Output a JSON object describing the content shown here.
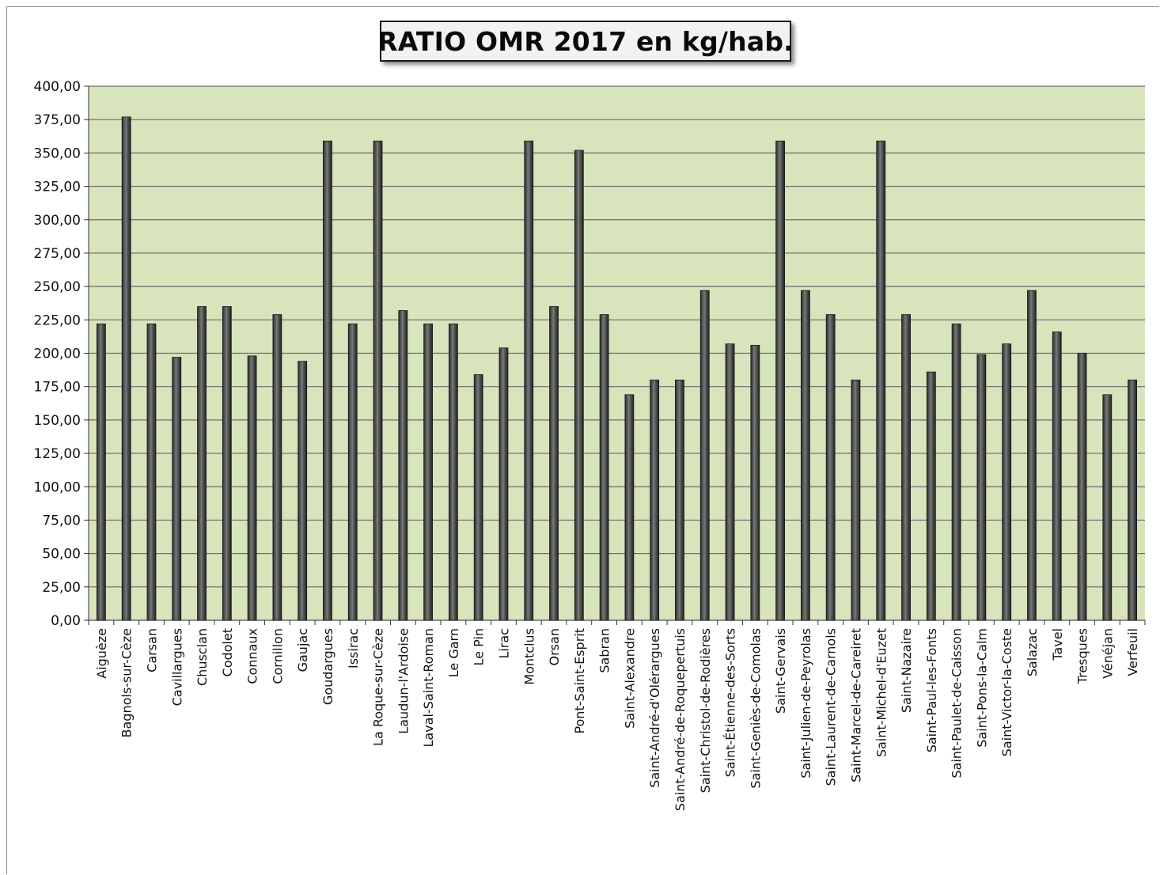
{
  "chart_data": {
    "type": "bar",
    "title": "RATIO OMR 2017 en kg/hab.",
    "xlabel": "",
    "ylabel": "",
    "ylim": [
      0,
      400
    ],
    "y_ticks": [
      "0,00",
      "25,00",
      "50,00",
      "75,00",
      "100,00",
      "125,00",
      "150,00",
      "175,00",
      "200,00",
      "225,00",
      "250,00",
      "275,00",
      "300,00",
      "325,00",
      "350,00",
      "375,00",
      "400,00"
    ],
    "y_tick_values": [
      0,
      25,
      50,
      75,
      100,
      125,
      150,
      175,
      200,
      225,
      250,
      275,
      300,
      325,
      350,
      375,
      400
    ],
    "grid": true,
    "legend": "none",
    "categories": [
      "Aiguèze",
      "Bagnols-sur-Cèze",
      "Carsan",
      "Cavillargues",
      "Chusclan",
      "Codolet",
      "Connaux",
      "Cornillon",
      "Gaujac",
      "Goudargues",
      "Issirac",
      "La Roque-sur-Cèze",
      "Laudun-l'Ardoise",
      "Laval-Saint-Roman",
      "Le Garn",
      "Le Pin",
      "Lirac",
      "Montclus",
      "Orsan",
      "Pont-Saint-Esprit",
      "Sabran",
      "Saint-Alexandre",
      "Saint-André-d'Olérargues",
      "Saint-André-de-Roquepertuis",
      "Saint-Christol-de-Rodières",
      "Saint-Étienne-des-Sorts",
      "Saint-Geniès-de-Comolas",
      "Saint-Gervais",
      "Saint-Julien-de-Peyrolas",
      "Saint-Laurent-de-Carnols",
      "Saint-Marcel-de-Careiret",
      "Saint-Michel-d'Euzet",
      "Saint-Nazaire",
      "Saint-Paul-les-Fonts",
      "Saint-Paulet-de-Caisson",
      "Saint-Pons-la-Calm",
      "Saint-Victor-la-Coste",
      "Salazac",
      "Tavel",
      "Tresques",
      "Vénéjan",
      "Verfeuil"
    ],
    "values": [
      222,
      377,
      222,
      197,
      235,
      235,
      198,
      229,
      194,
      359,
      222,
      359,
      232,
      222,
      222,
      184,
      204,
      359,
      235,
      352,
      229,
      169,
      180,
      180,
      247,
      207,
      206,
      359,
      247,
      229,
      180,
      359,
      229,
      186,
      222,
      199,
      207,
      247,
      216,
      200,
      169,
      180
    ],
    "colors": {
      "plot_background": "#d8e4bc",
      "bar_fill": "#3f3f3f",
      "bar_highlight": "#8c8c8c",
      "gridline": "#6b6b6b",
      "title_box": "#f2f2f2"
    }
  }
}
